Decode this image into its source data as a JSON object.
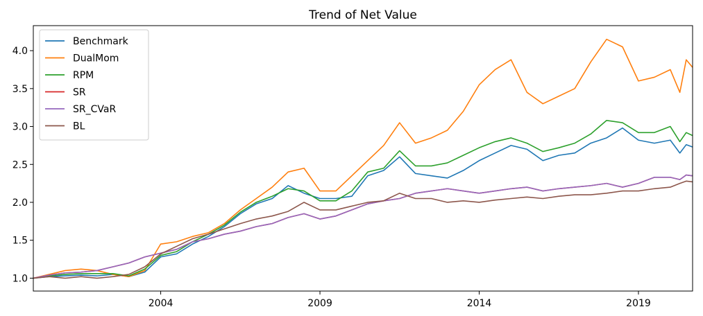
{
  "chart_data": {
    "type": "line",
    "title": "Trend of Net Value",
    "xlabel": "",
    "ylabel": "",
    "xlim": [
      2000.0,
      2020.7
    ],
    "ylim": [
      0.83,
      4.33
    ],
    "x_ticks": [
      2004,
      2009,
      2014,
      2019
    ],
    "x_tick_labels": [
      "2004",
      "2009",
      "2014",
      "2019"
    ],
    "y_ticks": [
      1.0,
      1.5,
      2.0,
      2.5,
      3.0,
      3.5,
      4.0
    ],
    "y_tick_labels": [
      "1.0",
      "1.5",
      "2.0",
      "2.5",
      "3.0",
      "3.5",
      "4.0"
    ],
    "grid": false,
    "legend_position": "top-left",
    "series": [
      {
        "name": "Benchmark",
        "color": "#1f77b4",
        "points": [
          [
            2000.0,
            1.0
          ],
          [
            2000.5,
            1.02
          ],
          [
            2001.0,
            1.03
          ],
          [
            2001.5,
            1.04
          ],
          [
            2002.0,
            1.03
          ],
          [
            2002.5,
            1.05
          ],
          [
            2003.0,
            1.02
          ],
          [
            2003.5,
            1.08
          ],
          [
            2004.0,
            1.28
          ],
          [
            2004.5,
            1.32
          ],
          [
            2005.0,
            1.45
          ],
          [
            2005.5,
            1.55
          ],
          [
            2006.0,
            1.68
          ],
          [
            2006.5,
            1.85
          ],
          [
            2007.0,
            1.98
          ],
          [
            2007.5,
            2.05
          ],
          [
            2008.0,
            2.22
          ],
          [
            2008.5,
            2.12
          ],
          [
            2009.0,
            2.05
          ],
          [
            2009.5,
            2.05
          ],
          [
            2010.0,
            2.08
          ],
          [
            2010.5,
            2.35
          ],
          [
            2011.0,
            2.42
          ],
          [
            2011.5,
            2.6
          ],
          [
            2012.0,
            2.38
          ],
          [
            2012.5,
            2.35
          ],
          [
            2013.0,
            2.32
          ],
          [
            2013.5,
            2.42
          ],
          [
            2014.0,
            2.55
          ],
          [
            2014.5,
            2.65
          ],
          [
            2015.0,
            2.75
          ],
          [
            2015.5,
            2.7
          ],
          [
            2016.0,
            2.55
          ],
          [
            2016.5,
            2.62
          ],
          [
            2017.0,
            2.65
          ],
          [
            2017.5,
            2.78
          ],
          [
            2018.0,
            2.85
          ],
          [
            2018.5,
            2.98
          ],
          [
            2019.0,
            2.82
          ],
          [
            2019.5,
            2.78
          ],
          [
            2020.0,
            2.82
          ],
          [
            2020.3,
            2.65
          ],
          [
            2020.5,
            2.76
          ],
          [
            2020.7,
            2.73
          ]
        ]
      },
      {
        "name": "DualMom",
        "color": "#ff7f0e",
        "points": [
          [
            2000.0,
            1.0
          ],
          [
            2000.5,
            1.05
          ],
          [
            2001.0,
            1.1
          ],
          [
            2001.5,
            1.12
          ],
          [
            2002.0,
            1.1
          ],
          [
            2002.5,
            1.05
          ],
          [
            2003.0,
            1.02
          ],
          [
            2003.5,
            1.1
          ],
          [
            2004.0,
            1.45
          ],
          [
            2004.5,
            1.48
          ],
          [
            2005.0,
            1.55
          ],
          [
            2005.5,
            1.6
          ],
          [
            2006.0,
            1.72
          ],
          [
            2006.5,
            1.9
          ],
          [
            2007.0,
            2.05
          ],
          [
            2007.5,
            2.2
          ],
          [
            2008.0,
            2.4
          ],
          [
            2008.5,
            2.45
          ],
          [
            2009.0,
            2.15
          ],
          [
            2009.5,
            2.15
          ],
          [
            2010.0,
            2.35
          ],
          [
            2010.5,
            2.55
          ],
          [
            2011.0,
            2.75
          ],
          [
            2011.5,
            3.05
          ],
          [
            2012.0,
            2.78
          ],
          [
            2012.5,
            2.85
          ],
          [
            2013.0,
            2.95
          ],
          [
            2013.5,
            3.2
          ],
          [
            2014.0,
            3.55
          ],
          [
            2014.5,
            3.75
          ],
          [
            2015.0,
            3.88
          ],
          [
            2015.5,
            3.45
          ],
          [
            2016.0,
            3.3
          ],
          [
            2016.5,
            3.4
          ],
          [
            2017.0,
            3.5
          ],
          [
            2017.5,
            3.85
          ],
          [
            2018.0,
            4.15
          ],
          [
            2018.5,
            4.05
          ],
          [
            2019.0,
            3.6
          ],
          [
            2019.5,
            3.65
          ],
          [
            2020.0,
            3.75
          ],
          [
            2020.3,
            3.45
          ],
          [
            2020.5,
            3.88
          ],
          [
            2020.7,
            3.78
          ]
        ]
      },
      {
        "name": "RPM",
        "color": "#2ca02c",
        "points": [
          [
            2000.0,
            1.0
          ],
          [
            2000.5,
            1.03
          ],
          [
            2001.0,
            1.05
          ],
          [
            2001.5,
            1.06
          ],
          [
            2002.0,
            1.06
          ],
          [
            2002.5,
            1.06
          ],
          [
            2003.0,
            1.03
          ],
          [
            2003.5,
            1.12
          ],
          [
            2004.0,
            1.3
          ],
          [
            2004.5,
            1.35
          ],
          [
            2005.0,
            1.48
          ],
          [
            2005.5,
            1.58
          ],
          [
            2006.0,
            1.7
          ],
          [
            2006.5,
            1.87
          ],
          [
            2007.0,
            2.0
          ],
          [
            2007.5,
            2.08
          ],
          [
            2008.0,
            2.18
          ],
          [
            2008.5,
            2.15
          ],
          [
            2009.0,
            2.02
          ],
          [
            2009.5,
            2.02
          ],
          [
            2010.0,
            2.15
          ],
          [
            2010.5,
            2.4
          ],
          [
            2011.0,
            2.45
          ],
          [
            2011.5,
            2.68
          ],
          [
            2012.0,
            2.48
          ],
          [
            2012.5,
            2.48
          ],
          [
            2013.0,
            2.52
          ],
          [
            2013.5,
            2.62
          ],
          [
            2014.0,
            2.72
          ],
          [
            2014.5,
            2.8
          ],
          [
            2015.0,
            2.85
          ],
          [
            2015.5,
            2.78
          ],
          [
            2016.0,
            2.67
          ],
          [
            2016.5,
            2.72
          ],
          [
            2017.0,
            2.78
          ],
          [
            2017.5,
            2.9
          ],
          [
            2018.0,
            3.08
          ],
          [
            2018.5,
            3.05
          ],
          [
            2019.0,
            2.92
          ],
          [
            2019.5,
            2.92
          ],
          [
            2020.0,
            3.0
          ],
          [
            2020.3,
            2.8
          ],
          [
            2020.5,
            2.92
          ],
          [
            2020.7,
            2.88
          ]
        ]
      },
      {
        "name": "SR",
        "color": "#d62728",
        "points": [
          [
            2000.0,
            1.0
          ],
          [
            2000.5,
            1.04
          ],
          [
            2001.0,
            1.07
          ],
          [
            2001.5,
            1.08
          ],
          [
            2002.0,
            1.1
          ],
          [
            2002.5,
            1.15
          ],
          [
            2003.0,
            1.2
          ],
          [
            2003.5,
            1.28
          ],
          [
            2004.0,
            1.33
          ],
          [
            2004.5,
            1.38
          ],
          [
            2005.0,
            1.48
          ],
          [
            2005.5,
            1.52
          ],
          [
            2006.0,
            1.58
          ],
          [
            2006.5,
            1.62
          ],
          [
            2007.0,
            1.68
          ],
          [
            2007.5,
            1.72
          ],
          [
            2008.0,
            1.8
          ],
          [
            2008.5,
            1.85
          ],
          [
            2009.0,
            1.78
          ],
          [
            2009.5,
            1.82
          ],
          [
            2010.0,
            1.9
          ],
          [
            2010.5,
            1.98
          ],
          [
            2011.0,
            2.02
          ],
          [
            2011.5,
            2.05
          ],
          [
            2012.0,
            2.12
          ],
          [
            2012.5,
            2.15
          ],
          [
            2013.0,
            2.18
          ],
          [
            2013.5,
            2.15
          ],
          [
            2014.0,
            2.12
          ],
          [
            2014.5,
            2.15
          ],
          [
            2015.0,
            2.18
          ],
          [
            2015.5,
            2.2
          ],
          [
            2016.0,
            2.15
          ],
          [
            2016.5,
            2.18
          ],
          [
            2017.0,
            2.2
          ],
          [
            2017.5,
            2.22
          ],
          [
            2018.0,
            2.25
          ],
          [
            2018.5,
            2.2
          ],
          [
            2019.0,
            2.25
          ],
          [
            2019.5,
            2.33
          ],
          [
            2020.0,
            2.33
          ],
          [
            2020.3,
            2.3
          ],
          [
            2020.5,
            2.36
          ],
          [
            2020.7,
            2.35
          ]
        ]
      },
      {
        "name": "SR_CVaR",
        "color": "#9467bd",
        "points": [
          [
            2000.0,
            1.0
          ],
          [
            2000.5,
            1.04
          ],
          [
            2001.0,
            1.07
          ],
          [
            2001.5,
            1.08
          ],
          [
            2002.0,
            1.1
          ],
          [
            2002.5,
            1.15
          ],
          [
            2003.0,
            1.2
          ],
          [
            2003.5,
            1.28
          ],
          [
            2004.0,
            1.33
          ],
          [
            2004.5,
            1.38
          ],
          [
            2005.0,
            1.48
          ],
          [
            2005.5,
            1.52
          ],
          [
            2006.0,
            1.58
          ],
          [
            2006.5,
            1.62
          ],
          [
            2007.0,
            1.68
          ],
          [
            2007.5,
            1.72
          ],
          [
            2008.0,
            1.8
          ],
          [
            2008.5,
            1.85
          ],
          [
            2009.0,
            1.78
          ],
          [
            2009.5,
            1.82
          ],
          [
            2010.0,
            1.9
          ],
          [
            2010.5,
            1.98
          ],
          [
            2011.0,
            2.02
          ],
          [
            2011.5,
            2.05
          ],
          [
            2012.0,
            2.12
          ],
          [
            2012.5,
            2.15
          ],
          [
            2013.0,
            2.18
          ],
          [
            2013.5,
            2.15
          ],
          [
            2014.0,
            2.12
          ],
          [
            2014.5,
            2.15
          ],
          [
            2015.0,
            2.18
          ],
          [
            2015.5,
            2.2
          ],
          [
            2016.0,
            2.15
          ],
          [
            2016.5,
            2.18
          ],
          [
            2017.0,
            2.2
          ],
          [
            2017.5,
            2.22
          ],
          [
            2018.0,
            2.25
          ],
          [
            2018.5,
            2.2
          ],
          [
            2019.0,
            2.25
          ],
          [
            2019.5,
            2.33
          ],
          [
            2020.0,
            2.33
          ],
          [
            2020.3,
            2.3
          ],
          [
            2020.5,
            2.36
          ],
          [
            2020.7,
            2.35
          ]
        ]
      },
      {
        "name": "BL",
        "color": "#8c564b",
        "points": [
          [
            2000.0,
            1.0
          ],
          [
            2000.5,
            1.02
          ],
          [
            2001.0,
            1.0
          ],
          [
            2001.5,
            1.02
          ],
          [
            2002.0,
            1.0
          ],
          [
            2002.5,
            1.02
          ],
          [
            2003.0,
            1.05
          ],
          [
            2003.5,
            1.15
          ],
          [
            2004.0,
            1.32
          ],
          [
            2004.5,
            1.42
          ],
          [
            2005.0,
            1.52
          ],
          [
            2005.5,
            1.58
          ],
          [
            2006.0,
            1.65
          ],
          [
            2006.5,
            1.72
          ],
          [
            2007.0,
            1.78
          ],
          [
            2007.5,
            1.82
          ],
          [
            2008.0,
            1.88
          ],
          [
            2008.5,
            2.0
          ],
          [
            2009.0,
            1.9
          ],
          [
            2009.5,
            1.9
          ],
          [
            2010.0,
            1.95
          ],
          [
            2010.5,
            2.0
          ],
          [
            2011.0,
            2.02
          ],
          [
            2011.5,
            2.12
          ],
          [
            2012.0,
            2.05
          ],
          [
            2012.5,
            2.05
          ],
          [
            2013.0,
            2.0
          ],
          [
            2013.5,
            2.02
          ],
          [
            2014.0,
            2.0
          ],
          [
            2014.5,
            2.03
          ],
          [
            2015.0,
            2.05
          ],
          [
            2015.5,
            2.07
          ],
          [
            2016.0,
            2.05
          ],
          [
            2016.5,
            2.08
          ],
          [
            2017.0,
            2.1
          ],
          [
            2017.5,
            2.1
          ],
          [
            2018.0,
            2.12
          ],
          [
            2018.5,
            2.15
          ],
          [
            2019.0,
            2.15
          ],
          [
            2019.5,
            2.18
          ],
          [
            2020.0,
            2.2
          ],
          [
            2020.3,
            2.25
          ],
          [
            2020.5,
            2.28
          ],
          [
            2020.7,
            2.27
          ]
        ]
      }
    ]
  }
}
